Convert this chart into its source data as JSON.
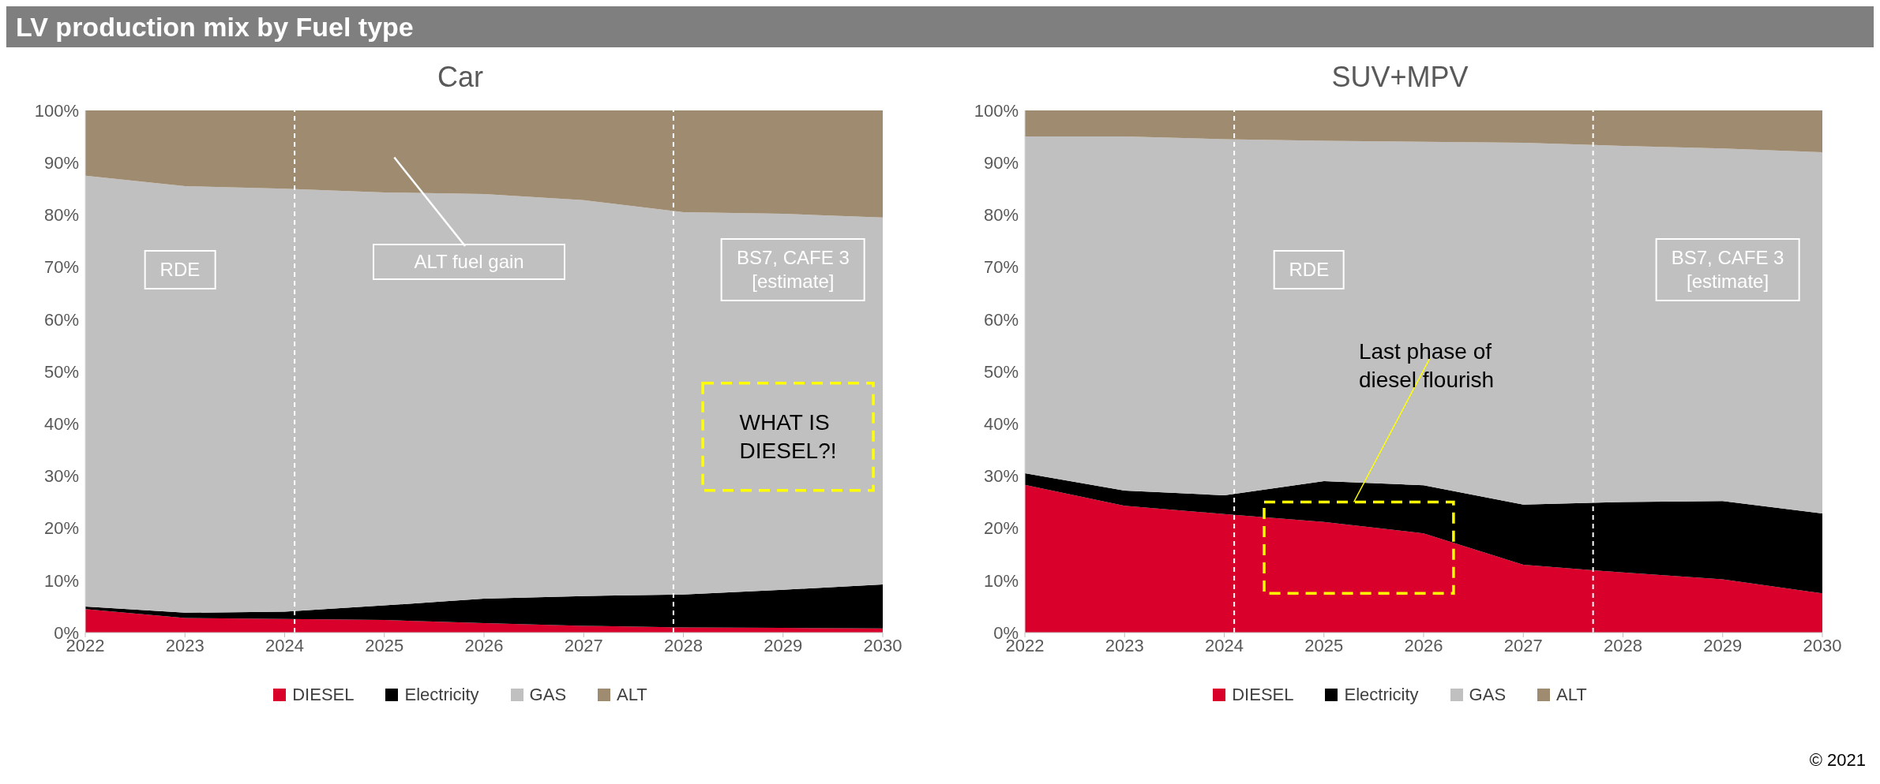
{
  "chart_data": [
    {
      "type": "area",
      "title": "Car",
      "stacked": true,
      "x": [
        2022,
        2023,
        2024,
        2025,
        2026,
        2027,
        2028,
        2029,
        2030
      ],
      "xlim": [
        2022,
        2030
      ],
      "xticks": [
        2022,
        2023,
        2024,
        2025,
        2026,
        2027,
        2028,
        2029,
        2030
      ],
      "ylim": [
        0,
        100
      ],
      "yticks": [
        {
          "value": 0,
          "label": "0%"
        },
        {
          "value": 10,
          "label": "10%"
        },
        {
          "value": 20,
          "label": "20%"
        },
        {
          "value": 30,
          "label": "30%"
        },
        {
          "value": 40,
          "label": "40%"
        },
        {
          "value": 50,
          "label": "50%"
        },
        {
          "value": 60,
          "label": "60%"
        },
        {
          "value": 70,
          "label": "70%"
        },
        {
          "value": 80,
          "label": "80%"
        },
        {
          "value": 90,
          "label": "90%"
        },
        {
          "value": 100,
          "label": "100%"
        }
      ],
      "legend": "bottom",
      "series": [
        {
          "name": "DIESEL",
          "color": "#d9002b",
          "values": [
            4.5,
            2.8,
            2.6,
            2.4,
            1.8,
            1.3,
            1.0,
            0.9,
            0.8
          ]
        },
        {
          "name": "Electricity",
          "color": "#000000",
          "values": [
            0.5,
            1.0,
            1.4,
            2.8,
            4.7,
            5.7,
            6.3,
            7.3,
            8.4
          ]
        },
        {
          "name": "GAS",
          "color": "#c0c0c0",
          "values": [
            82.5,
            81.7,
            81.0,
            79.1,
            77.5,
            75.8,
            73.2,
            72.0,
            70.3
          ]
        },
        {
          "name": "ALT",
          "color": "#9f8b70",
          "values": [
            12.5,
            14.5,
            15.0,
            15.7,
            16.0,
            17.2,
            19.5,
            19.8,
            20.5
          ]
        }
      ],
      "ref_lines": [
        {
          "axis": "x",
          "value": 2024.1,
          "color": "#ffffff",
          "line_style": "dashed"
        },
        {
          "axis": "x",
          "value": 2027.9,
          "color": "#ffffff",
          "line_style": "dashed"
        }
      ],
      "annotations": [
        "LV production mix by Fuel type",
        "RDE",
        "ALT fuel gain",
        "BS7, CAFE 3\n[estimate]",
        "WHAT IS\nDIESEL?!"
      ]
    },
    {
      "type": "area",
      "title": "SUV+MPV",
      "stacked": true,
      "x": [
        2022,
        2023,
        2024,
        2025,
        2026,
        2027,
        2028,
        2029,
        2030
      ],
      "xlim": [
        2022,
        2030
      ],
      "xticks": [
        2022,
        2023,
        2024,
        2025,
        2026,
        2027,
        2028,
        2029,
        2030
      ],
      "ylim": [
        0,
        100
      ],
      "yticks": [
        {
          "value": 0,
          "label": "0%"
        },
        {
          "value": 10,
          "label": "10%"
        },
        {
          "value": 20,
          "label": "20%"
        },
        {
          "value": 30,
          "label": "30%"
        },
        {
          "value": 40,
          "label": "40%"
        },
        {
          "value": 50,
          "label": "50%"
        },
        {
          "value": 60,
          "label": "60%"
        },
        {
          "value": 70,
          "label": "70%"
        },
        {
          "value": 80,
          "label": "80%"
        },
        {
          "value": 90,
          "label": "90%"
        },
        {
          "value": 100,
          "label": "100%"
        }
      ],
      "legend": "bottom",
      "series": [
        {
          "name": "DIESEL",
          "color": "#d9002b",
          "values": [
            28.3,
            24.3,
            22.7,
            21.2,
            19.0,
            13.0,
            11.5,
            10.2,
            7.5
          ]
        },
        {
          "name": "Electricity",
          "color": "#000000",
          "values": [
            2.2,
            2.9,
            3.6,
            7.8,
            9.2,
            11.5,
            13.5,
            15.0,
            15.3
          ]
        },
        {
          "name": "GAS",
          "color": "#c0c0c0",
          "values": [
            64.5,
            67.8,
            68.2,
            65.2,
            65.8,
            69.3,
            68.2,
            67.5,
            69.2
          ]
        },
        {
          "name": "ALT",
          "color": "#9f8b70",
          "values": [
            5.0,
            5.0,
            5.5,
            5.8,
            6.0,
            6.2,
            6.8,
            7.3,
            8.0
          ]
        }
      ],
      "ref_lines": [
        {
          "axis": "x",
          "value": 2024.1,
          "color": "#ffffff",
          "line_style": "dashed"
        },
        {
          "axis": "x",
          "value": 2027.7,
          "color": "#ffffff",
          "line_style": "dashed"
        }
      ],
      "annotations": [
        "RDE",
        "BS7, CAFE 3\n[estimate]",
        "Last phase of diesel flourish",
        "© 2021"
      ]
    }
  ]
}
